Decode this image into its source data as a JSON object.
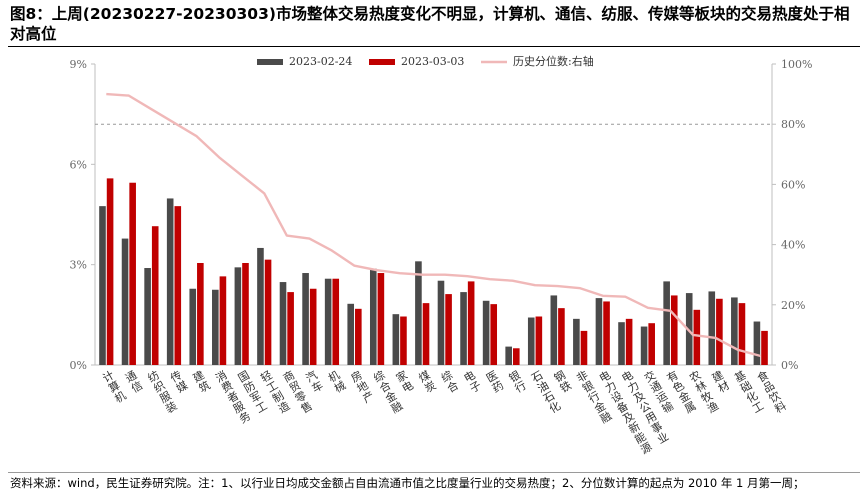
{
  "title": "图8：上周(20230227-20230303)市场整体交易热度变化不明显，计算机、通信、纺服、传媒等板块的交易热度处于相对高位",
  "footer": "资料来源：wind，民生证券研究院。注：1、以行业日均成交金额占自由流通市值之比度量行业的交易热度；2、分位数计算的起点为 2010 年 1 月第一周；",
  "colors": {
    "series1": "#4a4a4a",
    "series2": "#c00000",
    "line": "#f0b8b8",
    "axis": "#bfbfbf",
    "dash": "#999999"
  },
  "chart_data": {
    "type": "bar",
    "categories": [
      "计算机",
      "通信",
      "纺织服装",
      "传媒",
      "建筑",
      "消费者服务",
      "国防军工",
      "轻工制造",
      "商贸零售",
      "汽车",
      "机械",
      "房地产",
      "综合金融",
      "家电",
      "煤炭",
      "综合",
      "电子",
      "医药",
      "银行",
      "石油石化",
      "钢铁",
      "非银行金融",
      "电力设备及新能源",
      "电力及公用事业",
      "交通运输",
      "有色金属",
      "农林牧渔",
      "建材",
      "基础化工",
      "食品饮料"
    ],
    "series": [
      {
        "name": "2023-02-24",
        "axis": "left",
        "values": [
          4.75,
          3.78,
          2.9,
          4.98,
          2.28,
          2.25,
          2.92,
          3.5,
          2.48,
          2.75,
          2.58,
          1.83,
          2.88,
          1.52,
          3.1,
          2.52,
          2.18,
          1.92,
          0.55,
          1.42,
          2.08,
          1.38,
          2.0,
          1.28,
          1.15,
          2.5,
          2.15,
          2.2,
          2.02,
          1.3
        ]
      },
      {
        "name": "2023-03-03",
        "axis": "left",
        "values": [
          5.58,
          5.45,
          4.15,
          4.75,
          3.05,
          2.65,
          3.05,
          3.15,
          2.18,
          2.28,
          2.58,
          1.68,
          2.75,
          1.45,
          1.85,
          2.12,
          2.5,
          1.82,
          0.5,
          1.45,
          1.7,
          1.02,
          1.9,
          1.38,
          1.25,
          2.08,
          1.65,
          1.98,
          1.85,
          1.02
        ]
      },
      {
        "name": "历史分位数:右轴",
        "type": "line",
        "axis": "right",
        "values": [
          90,
          89.5,
          85,
          80.5,
          76,
          69,
          63,
          57,
          43,
          42,
          38,
          33,
          31.5,
          30.5,
          30,
          30,
          29.5,
          28.5,
          28,
          26.5,
          26.2,
          25.5,
          23,
          22.7,
          19,
          18,
          10,
          9,
          5,
          3
        ]
      }
    ],
    "y_left": {
      "ticks": [
        "0%",
        "3%",
        "6%",
        "9%"
      ],
      "ylim": [
        0,
        9
      ]
    },
    "y_right": {
      "ticks": [
        "0%",
        "20%",
        "40%",
        "60%",
        "80%",
        "100%"
      ],
      "ylim": [
        0,
        100
      ]
    },
    "reference_line": {
      "axis": "right",
      "value": 80,
      "style": "dashed"
    },
    "legend": "top"
  }
}
